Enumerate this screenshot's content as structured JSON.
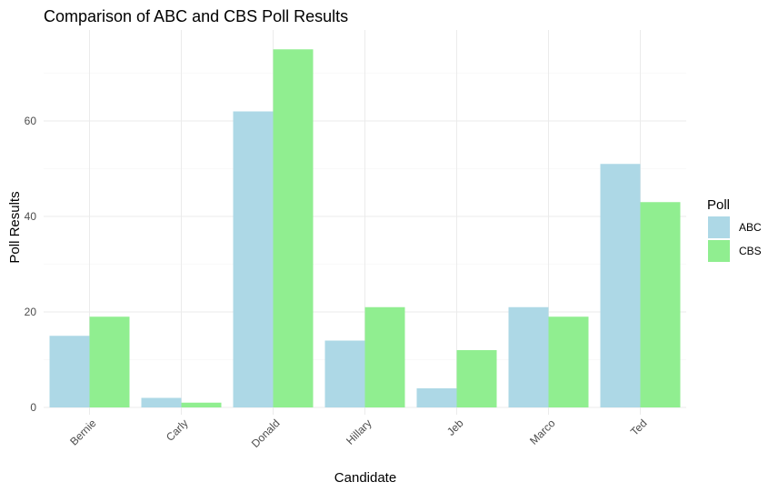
{
  "chart_data": {
    "type": "bar",
    "title": "Comparison of ABC and CBS Poll Results",
    "xlabel": "Candidate",
    "ylabel": "Poll Results",
    "categories": [
      "Bernie",
      "Carly",
      "Donald",
      "Hillary",
      "Jeb",
      "Marco",
      "Ted"
    ],
    "series": [
      {
        "name": "ABC",
        "color": "#add8e6",
        "values": [
          15,
          2,
          62,
          14,
          4,
          21,
          51
        ]
      },
      {
        "name": "CBS",
        "color": "#90ee90",
        "values": [
          19,
          1,
          75,
          21,
          12,
          19,
          43
        ]
      }
    ],
    "yticks": [
      0,
      20,
      40,
      60
    ],
    "ylim": [
      0,
      78
    ],
    "grid": true,
    "legend": {
      "title": "Poll",
      "position": "right"
    }
  }
}
